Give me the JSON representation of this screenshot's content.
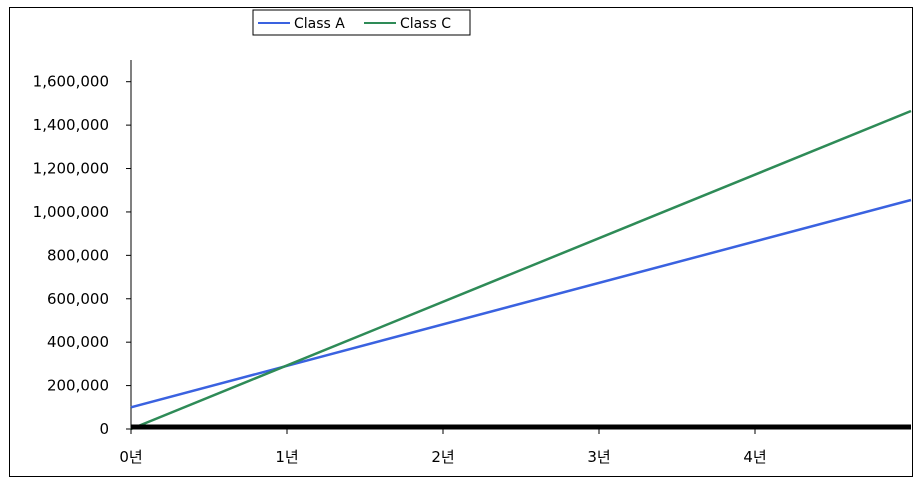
{
  "chart_data": {
    "type": "line",
    "title": "",
    "xlabel": "",
    "ylabel": "",
    "x_tick_labels": [
      "0년",
      "1년",
      "2년",
      "3년",
      "4년"
    ],
    "x": [
      0,
      5
    ],
    "xlim": [
      0,
      5
    ],
    "ylim": [
      0,
      1700000
    ],
    "y_ticks": [
      0,
      200000,
      400000,
      600000,
      800000,
      1000000,
      1200000,
      1400000,
      1600000
    ],
    "y_tick_labels": [
      "0",
      "200,000",
      "400,000",
      "600,000",
      "800,000",
      "1,000,000",
      "1,200,000",
      "1,400,000",
      "1,600,000"
    ],
    "grid": false,
    "legend_position": "top-center",
    "series": [
      {
        "name": "Class A",
        "color": "#3a62e0",
        "values": [
          100000,
          1055000
        ]
      },
      {
        "name": "Class C",
        "color": "#2e8b57",
        "values": [
          0,
          1465000
        ]
      }
    ]
  }
}
